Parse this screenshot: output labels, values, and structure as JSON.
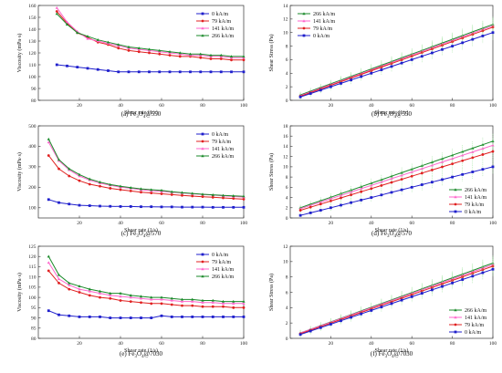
{
  "panels": [
    {
      "caption": [
        "(a) Fe",
        "3",
        "O",
        "4",
        "@550"
      ],
      "xlabel": "Shear rate (1/s)",
      "ylabel": "Viscosity (mPa·s)",
      "xlim": [
        0,
        100
      ],
      "ylim": [
        80,
        160
      ],
      "yticks": [
        80,
        90,
        100,
        110,
        120,
        130,
        140,
        150,
        160
      ],
      "xticks": [
        20,
        40,
        60,
        80,
        100
      ],
      "legend_pos": "top-right",
      "errorbars": false,
      "series": [
        {
          "name": "0 kA/m",
          "color": "#1f1fcc",
          "marker": "square",
          "x": [
            9,
            14,
            19,
            24,
            29,
            34,
            39,
            44,
            49,
            54,
            59,
            64,
            69,
            74,
            79,
            84,
            89,
            94,
            100
          ],
          "y": [
            110,
            109,
            108,
            107,
            106,
            105,
            104,
            104,
            104,
            104,
            104,
            104,
            104,
            104,
            104,
            104,
            104,
            104,
            104
          ]
        },
        {
          "name": "79 kA/m",
          "color": "#e02020",
          "marker": "circle",
          "x": [
            9,
            14,
            19,
            24,
            29,
            34,
            39,
            44,
            49,
            54,
            59,
            64,
            69,
            74,
            79,
            84,
            89,
            94,
            100
          ],
          "y": [
            155,
            145,
            137,
            133,
            129,
            127,
            124,
            122,
            121,
            120,
            119,
            118,
            117,
            117,
            116,
            115,
            115,
            114,
            114
          ]
        },
        {
          "name": "141 kA/m",
          "color": "#ff66cc",
          "marker": "triangle",
          "x": [
            9,
            14,
            19,
            24,
            29,
            34,
            39,
            44,
            49,
            54,
            59,
            64,
            69,
            74,
            79,
            84,
            89,
            94,
            100
          ],
          "y": [
            158,
            146,
            138,
            132,
            130,
            128,
            126,
            124,
            123,
            122,
            121,
            120,
            119,
            118,
            118,
            117,
            117,
            116,
            116
          ]
        },
        {
          "name": "266 kA/m",
          "color": "#1a8a2a",
          "marker": "triangle",
          "x": [
            9,
            14,
            19,
            24,
            29,
            34,
            39,
            44,
            49,
            54,
            59,
            64,
            69,
            74,
            79,
            84,
            89,
            94,
            100
          ],
          "y": [
            153,
            144,
            137,
            134,
            131,
            129,
            127,
            125,
            124,
            123,
            122,
            121,
            120,
            119,
            119,
            118,
            118,
            117,
            117
          ]
        }
      ]
    },
    {
      "caption": [
        "(b) Fe",
        "3",
        "O",
        "4",
        "@550"
      ],
      "xlabel": "Shear rate (1/s)",
      "ylabel": "Shear Stress (Pa)",
      "xlim": [
        0,
        100
      ],
      "ylim": [
        0,
        14
      ],
      "yticks": [
        0,
        2,
        4,
        6,
        8,
        10,
        12,
        14
      ],
      "xticks": [
        20,
        40,
        60,
        80,
        100
      ],
      "legend_pos": "top-left",
      "errorbars": true,
      "series": [
        {
          "name": "266 kA/m",
          "color": "#1a8a2a",
          "marker": "triangle",
          "x": [
            5,
            100
          ],
          "y": [
            0.8,
            11.2
          ]
        },
        {
          "name": "141 kA/m",
          "color": "#ff66cc",
          "marker": "triangle",
          "x": [
            5,
            100
          ],
          "y": [
            0.7,
            11.0
          ]
        },
        {
          "name": "79 kA/m",
          "color": "#e02020",
          "marker": "circle",
          "x": [
            5,
            100
          ],
          "y": [
            0.6,
            10.8
          ]
        },
        {
          "name": "0 kA/m",
          "color": "#1f1fcc",
          "marker": "square",
          "x": [
            5,
            100
          ],
          "y": [
            0.5,
            10.0
          ]
        }
      ]
    },
    {
      "caption": [
        "(c) Fe",
        "3",
        "O",
        "4",
        "@570"
      ],
      "xlabel": "Shear rate (1/s)",
      "ylabel": "Viscosity (mPa·s)",
      "xlim": [
        0,
        100
      ],
      "ylim": [
        50,
        500
      ],
      "yticks": [
        100,
        200,
        300,
        400,
        500
      ],
      "xticks": [
        20,
        40,
        60,
        80,
        100
      ],
      "legend_pos": "top-right",
      "errorbars": false,
      "series": [
        {
          "name": "0 kA/m",
          "color": "#1f1fcc",
          "marker": "square",
          "x": [
            5,
            10,
            15,
            20,
            25,
            30,
            35,
            40,
            45,
            50,
            55,
            60,
            65,
            70,
            75,
            80,
            85,
            90,
            95,
            100
          ],
          "y": [
            140,
            125,
            118,
            112,
            110,
            108,
            107,
            106,
            106,
            105,
            105,
            104,
            104,
            103,
            103,
            103,
            102,
            102,
            102,
            102
          ]
        },
        {
          "name": "79 kA/m",
          "color": "#e02020",
          "marker": "circle",
          "x": [
            5,
            10,
            15,
            20,
            25,
            30,
            35,
            40,
            45,
            50,
            55,
            60,
            65,
            70,
            75,
            80,
            85,
            90,
            95,
            100
          ],
          "y": [
            355,
            290,
            255,
            232,
            215,
            205,
            195,
            188,
            182,
            176,
            172,
            168,
            164,
            160,
            157,
            154,
            151,
            148,
            145,
            142
          ]
        },
        {
          "name": "141 kA/m",
          "color": "#ff66cc",
          "marker": "triangle",
          "x": [
            5,
            10,
            15,
            20,
            25,
            30,
            35,
            40,
            45,
            50,
            55,
            60,
            65,
            70,
            75,
            80,
            85,
            90,
            95,
            100
          ],
          "y": [
            420,
            330,
            285,
            255,
            235,
            220,
            210,
            200,
            195,
            188,
            183,
            180,
            176,
            172,
            168,
            165,
            162,
            158,
            155,
            152
          ]
        },
        {
          "name": "266 kA/m",
          "color": "#1a8a2a",
          "marker": "triangle",
          "x": [
            5,
            10,
            15,
            20,
            25,
            30,
            35,
            40,
            45,
            50,
            55,
            60,
            65,
            70,
            75,
            80,
            85,
            90,
            95,
            100
          ],
          "y": [
            435,
            335,
            290,
            262,
            240,
            225,
            213,
            205,
            198,
            192,
            188,
            185,
            178,
            174,
            170,
            166,
            163,
            160,
            158,
            156
          ]
        }
      ]
    },
    {
      "caption": [
        "(d) Fe",
        "3",
        "O",
        "4",
        "@570"
      ],
      "xlabel": "Shear rate (1/s)",
      "ylabel": "Shear Stress (Pa)",
      "xlim": [
        0,
        100
      ],
      "ylim": [
        0,
        18
      ],
      "yticks": [
        0,
        2,
        4,
        6,
        8,
        10,
        12,
        14,
        16,
        18
      ],
      "xticks": [
        20,
        40,
        60,
        80,
        100
      ],
      "legend_pos": "bottom-right",
      "errorbars": true,
      "series": [
        {
          "name": "266 kA/m",
          "color": "#1a8a2a",
          "marker": "triangle",
          "x": [
            5,
            100
          ],
          "y": [
            2.0,
            15.0
          ]
        },
        {
          "name": "141 kA/m",
          "color": "#ff66cc",
          "marker": "triangle",
          "x": [
            5,
            100
          ],
          "y": [
            1.8,
            14.2
          ]
        },
        {
          "name": "79 kA/m",
          "color": "#e02020",
          "marker": "circle",
          "x": [
            5,
            100
          ],
          "y": [
            1.5,
            13.0
          ]
        },
        {
          "name": "0 kA/m",
          "color": "#1f1fcc",
          "marker": "square",
          "x": [
            5,
            100
          ],
          "y": [
            0.5,
            10.0
          ]
        }
      ]
    },
    {
      "caption": [
        "(e) Fe",
        "3",
        "O",
        "4",
        "@7030"
      ],
      "xlabel": "Shear rate (1/s)",
      "ylabel": "Viscosity (mPa·s)",
      "xlim": [
        0,
        100
      ],
      "ylim": [
        80,
        125
      ],
      "yticks": [
        80,
        85,
        90,
        95,
        100,
        105,
        110,
        115,
        120,
        125
      ],
      "xticks": [
        20,
        40,
        60,
        80,
        100
      ],
      "legend_pos": "top-right",
      "errorbars": false,
      "series": [
        {
          "name": "0 kA/m",
          "color": "#1f1fcc",
          "marker": "square",
          "x": [
            5,
            10,
            15,
            20,
            25,
            30,
            35,
            40,
            45,
            50,
            55,
            60,
            65,
            70,
            75,
            80,
            85,
            90,
            95,
            100
          ],
          "y": [
            93.5,
            91.5,
            91,
            90.5,
            90.5,
            90.5,
            90,
            90,
            90,
            90,
            90,
            91,
            90.5,
            90.5,
            90.5,
            90.5,
            90.5,
            90.5,
            90.5,
            90.5
          ]
        },
        {
          "name": "79 kA/m",
          "color": "#e02020",
          "marker": "circle",
          "x": [
            5,
            10,
            15,
            20,
            25,
            30,
            35,
            40,
            45,
            50,
            55,
            60,
            65,
            70,
            75,
            80,
            85,
            90,
            95,
            100
          ],
          "y": [
            113,
            107,
            104,
            102.5,
            101,
            100,
            99.5,
            98.5,
            98,
            97.5,
            97,
            97,
            96.5,
            96,
            96,
            95.5,
            95.5,
            95.5,
            95,
            95
          ]
        },
        {
          "name": "141 kA/m",
          "color": "#ff66cc",
          "marker": "triangle",
          "x": [
            5,
            10,
            15,
            20,
            25,
            30,
            35,
            40,
            45,
            50,
            55,
            60,
            65,
            70,
            75,
            80,
            85,
            90,
            95,
            100
          ],
          "y": [
            117,
            109,
            106,
            104,
            103,
            102,
            101,
            100.5,
            100,
            99.5,
            99,
            99,
            98.5,
            98,
            98,
            97.5,
            97.5,
            97,
            97,
            97
          ]
        },
        {
          "name": "266 kA/m",
          "color": "#1a8a2a",
          "marker": "triangle",
          "x": [
            5,
            10,
            15,
            20,
            25,
            30,
            35,
            40,
            45,
            50,
            55,
            60,
            65,
            70,
            75,
            80,
            85,
            90,
            95,
            100
          ],
          "y": [
            120,
            111,
            107,
            105.5,
            104,
            103,
            102,
            102,
            101,
            100.5,
            100,
            100,
            99.5,
            99,
            99,
            98.5,
            98.5,
            98,
            98,
            98
          ]
        }
      ]
    },
    {
      "caption": [
        "(f) Fe",
        "3",
        "O",
        "4",
        "@7030"
      ],
      "xlabel": "Shear rate (1/s)",
      "ylabel": "Shear Stress (Pa)",
      "xlim": [
        0,
        100
      ],
      "ylim": [
        0,
        12
      ],
      "yticks": [
        0,
        2,
        4,
        6,
        8,
        10,
        12
      ],
      "xticks": [
        20,
        40,
        60,
        80,
        100
      ],
      "legend_pos": "bottom-right",
      "errorbars": true,
      "series": [
        {
          "name": "266 kA/m",
          "color": "#1a8a2a",
          "marker": "triangle",
          "x": [
            5,
            100
          ],
          "y": [
            0.7,
            9.8
          ]
        },
        {
          "name": "141 kA/m",
          "color": "#ff66cc",
          "marker": "triangle",
          "x": [
            5,
            100
          ],
          "y": [
            0.7,
            9.6
          ]
        },
        {
          "name": "79 kA/m",
          "color": "#e02020",
          "marker": "circle",
          "x": [
            5,
            100
          ],
          "y": [
            0.6,
            9.4
          ]
        },
        {
          "name": "0 kA/m",
          "color": "#1f1fcc",
          "marker": "square",
          "x": [
            5,
            100
          ],
          "y": [
            0.5,
            9.0
          ]
        }
      ]
    }
  ]
}
